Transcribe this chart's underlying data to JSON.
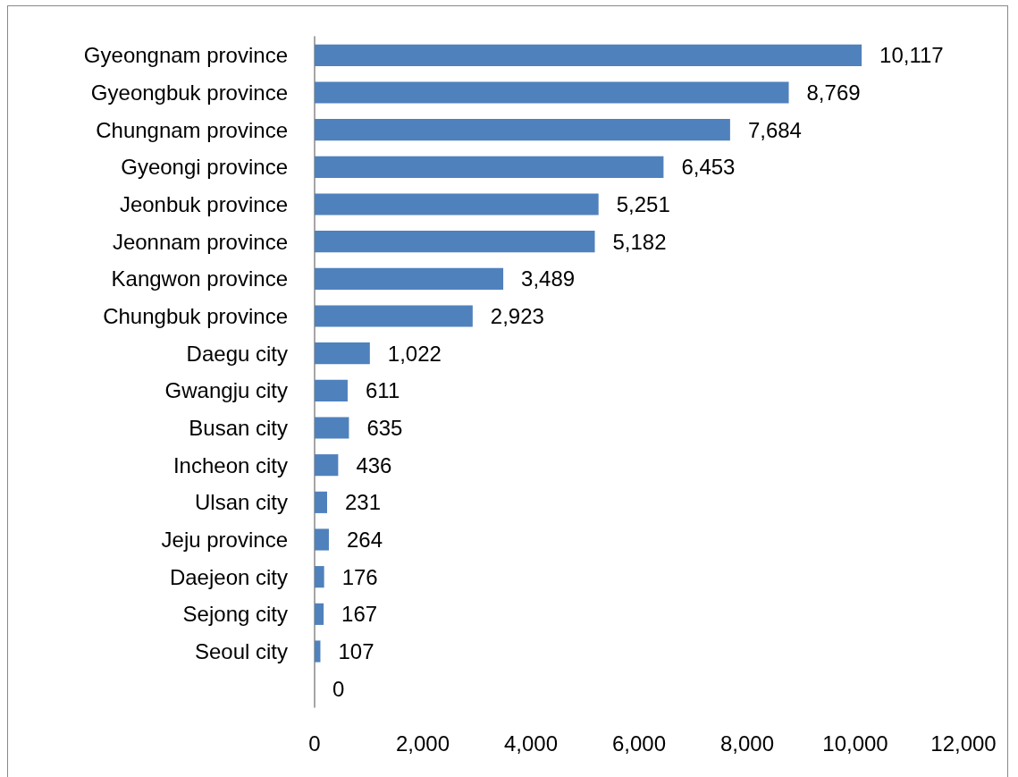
{
  "chart_data": {
    "type": "bar",
    "orientation": "horizontal",
    "categories": [
      "Gyeongnam province",
      "Gyeongbuk province",
      "Chungnam province",
      "Gyeongi province",
      "Jeonbuk province",
      "Jeonnam province",
      "Kangwon province",
      "Chungbuk province",
      "Daegu city",
      "Gwangju city",
      "Busan city",
      "Incheon city",
      "Ulsan city",
      "Jeju province",
      "Daejeon city",
      "Sejong city",
      "Seoul city",
      null
    ],
    "values": [
      10117,
      8769,
      7684,
      6453,
      5251,
      5182,
      3489,
      2923,
      1022,
      611,
      635,
      436,
      231,
      264,
      176,
      167,
      107,
      0
    ],
    "value_labels": [
      "10,117",
      "8,769",
      "7,684",
      "6,453",
      "5,251",
      "5,182",
      "3,489",
      "2,923",
      "1,022",
      "611",
      "635",
      "436",
      "231",
      "264",
      "176",
      "167",
      "107",
      "0"
    ],
    "color": "#4f81bd",
    "xlim": [
      0,
      12000
    ],
    "xticks": [
      0,
      {
        "value": 2000,
        "label": "2,000"
      },
      {
        "value": 4000,
        "label": "4,000"
      },
      {
        "value": 6000,
        "label": "6,000"
      },
      {
        "value": 8000,
        "label": "8,000"
      },
      {
        "value": 10000,
        "label": "10,000"
      },
      {
        "value": 12000,
        "label": "12,000"
      }
    ],
    "grid": false
  }
}
